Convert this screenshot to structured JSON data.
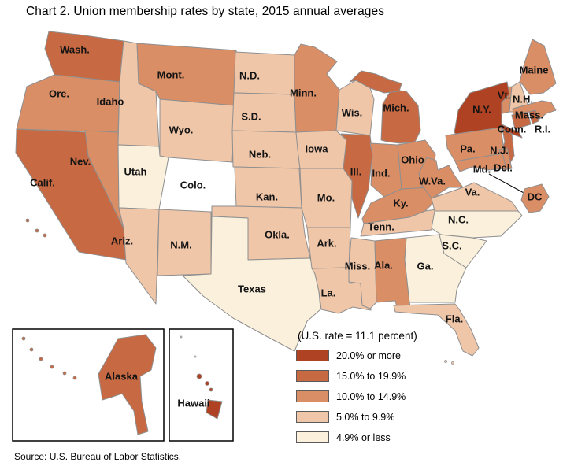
{
  "title": "Chart 2. Union membership rates by state, 2015 annual averages",
  "source": "Source: U.S. Bureau of Labor Statistics.",
  "chart_data": {
    "type": "heatmap",
    "subtype": "us_states_choropleth",
    "title": "Chart 2. Union membership rates by state, 2015 annual averages",
    "note": "(U.S. rate = 11.1 percent)",
    "us_rate_percent": 11.1,
    "border_color": "#8f8f8f",
    "legend_position": "bottom-right",
    "legend": [
      {
        "label": "20.0% or more",
        "color": "#AF4223"
      },
      {
        "label": "15.0% to 19.9%",
        "color": "#C76942"
      },
      {
        "label": "10.0% to 14.9%",
        "color": "#D98E66"
      },
      {
        "label": "5.0% to 9.9%",
        "color": "#F0C6A9"
      },
      {
        "label": "4.9% or less",
        "color": "#FAF0DC"
      }
    ],
    "states": [
      {
        "id": "WA",
        "label": "Wash.",
        "category": 1
      },
      {
        "id": "OR",
        "label": "Ore.",
        "category": 2
      },
      {
        "id": "CA",
        "label": "Calif.",
        "category": 1
      },
      {
        "id": "NV",
        "label": "Nev.",
        "category": 2
      },
      {
        "id": "ID",
        "label": "Idaho",
        "category": 3
      },
      {
        "id": "UT",
        "label": "Utah",
        "category": 4
      },
      {
        "id": "AZ",
        "label": "Ariz.",
        "category": 3
      },
      {
        "id": "MT",
        "label": "Mont.",
        "category": 2
      },
      {
        "id": "WY",
        "label": "Wyo.",
        "category": 3
      },
      {
        "id": "CO",
        "label": "Colo.",
        "category": 3
      },
      {
        "id": "NM",
        "label": "N.M.",
        "category": 3
      },
      {
        "id": "ND",
        "label": "N.D.",
        "category": 3
      },
      {
        "id": "SD",
        "label": "S.D.",
        "category": 3
      },
      {
        "id": "NE",
        "label": "Neb.",
        "category": 3
      },
      {
        "id": "KS",
        "label": "Kan.",
        "category": 3
      },
      {
        "id": "OK",
        "label": "Okla.",
        "category": 3
      },
      {
        "id": "TX",
        "label": "Texas",
        "category": 4
      },
      {
        "id": "MN",
        "label": "Minn.",
        "category": 2
      },
      {
        "id": "IA",
        "label": "Iowa",
        "category": 3
      },
      {
        "id": "MO",
        "label": "Mo.",
        "category": 3
      },
      {
        "id": "AR",
        "label": "Ark.",
        "category": 3
      },
      {
        "id": "LA",
        "label": "La.",
        "category": 3
      },
      {
        "id": "WI",
        "label": "Wis.",
        "category": 3
      },
      {
        "id": "IL",
        "label": "Ill.",
        "category": 1
      },
      {
        "id": "MI",
        "label": "Mich.",
        "category": 1
      },
      {
        "id": "IN",
        "label": "Ind.",
        "category": 2
      },
      {
        "id": "OH",
        "label": "Ohio",
        "category": 2
      },
      {
        "id": "KY",
        "label": "Ky.",
        "category": 2
      },
      {
        "id": "TN",
        "label": "Tenn.",
        "category": 3
      },
      {
        "id": "MS",
        "label": "Miss.",
        "category": 3
      },
      {
        "id": "AL",
        "label": "Ala.",
        "category": 2
      },
      {
        "id": "GA",
        "label": "Ga.",
        "category": 4
      },
      {
        "id": "FL",
        "label": "Fla.",
        "category": 3
      },
      {
        "id": "ME",
        "label": "Maine",
        "category": 2
      },
      {
        "id": "VT",
        "label": "Vt.",
        "category": 2
      },
      {
        "id": "NH",
        "label": "N.H.",
        "category": 3
      },
      {
        "id": "MA",
        "label": "Mass.",
        "category": 2
      },
      {
        "id": "CT",
        "label": "Conn.",
        "category": 1
      },
      {
        "id": "RI",
        "label": "R.I.",
        "category": 1
      },
      {
        "id": "NY",
        "label": "N.Y.",
        "category": 0
      },
      {
        "id": "NJ",
        "label": "N.J.",
        "category": 1
      },
      {
        "id": "PA",
        "label": "Pa.",
        "category": 2
      },
      {
        "id": "DE",
        "label": "Del.",
        "category": 2
      },
      {
        "id": "MD",
        "label": "Md.",
        "category": 2
      },
      {
        "id": "WV",
        "label": "W.Va.",
        "category": 2
      },
      {
        "id": "VA",
        "label": "Va.",
        "category": 3
      },
      {
        "id": "NC",
        "label": "N.C.",
        "category": 4
      },
      {
        "id": "SC",
        "label": "S.C.",
        "category": 4
      },
      {
        "id": "DC",
        "label": "DC",
        "category": 2
      },
      {
        "id": "AK",
        "label": "Alaska",
        "category": 1
      },
      {
        "id": "HI",
        "label": "Hawaii",
        "category": 0
      }
    ]
  }
}
